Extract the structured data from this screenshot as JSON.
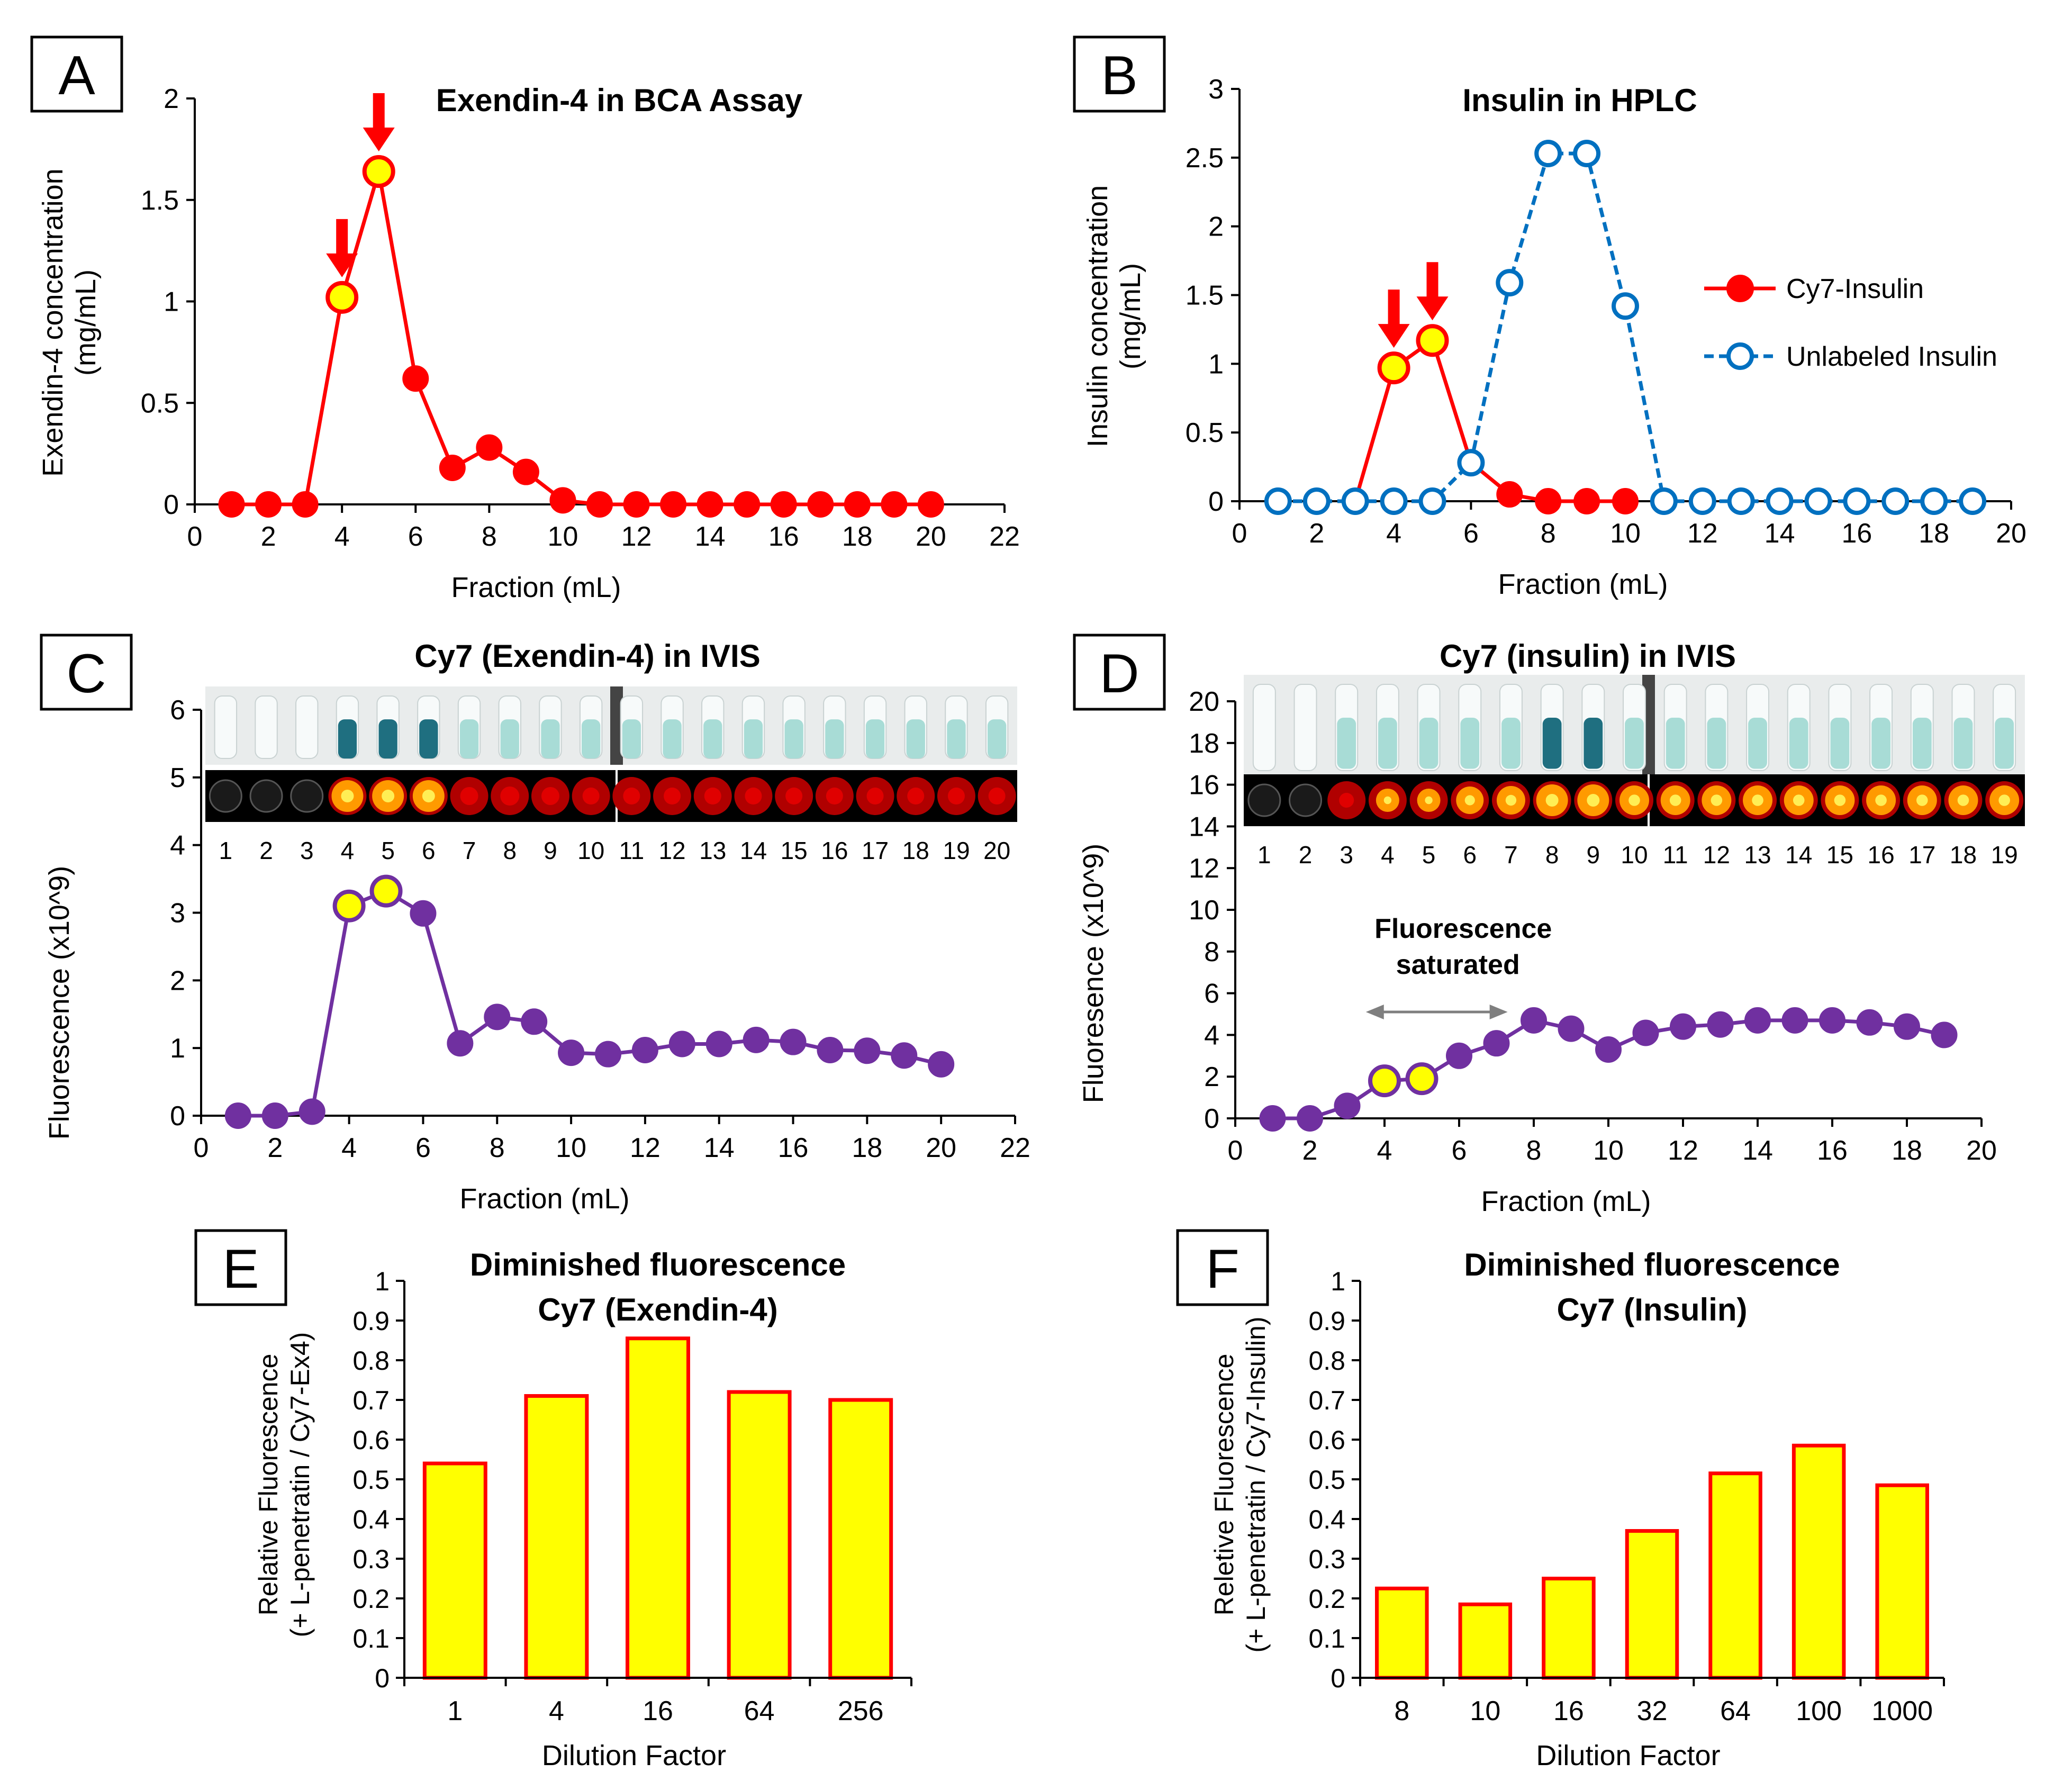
{
  "colors": {
    "red": "#ff0000",
    "blue": "#0070c0",
    "purple": "#7030a0",
    "yellow": "#ffff00",
    "arrow": "#ff0000",
    "grey": "#7f7f7f",
    "tube_dark": "#1f6f80",
    "tube_light": "#a8dcd6"
  },
  "chart_data": [
    {
      "id": "A",
      "panel_label": "A",
      "type": "line",
      "title": "Exendin-4 in BCA Assay",
      "xlabel": "Fraction (mL)",
      "ylabel": [
        "Exendin-4 concentration",
        "(mg/mL)"
      ],
      "xlim": [
        0,
        22
      ],
      "ylim": [
        0,
        2
      ],
      "xticks": [
        "0",
        "2",
        "4",
        "6",
        "8",
        "10",
        "12",
        "14",
        "16",
        "18",
        "20",
        "22"
      ],
      "yticks": [
        "0",
        "0.5",
        "1",
        "1.5",
        "2"
      ],
      "series": [
        {
          "name": "Exendin-4",
          "style": "solid-filled",
          "x": [
            1,
            2,
            3,
            4,
            5,
            6,
            7,
            8,
            9,
            10,
            11,
            12,
            13,
            14,
            15,
            16,
            17,
            18,
            19,
            20
          ],
          "y": [
            0,
            0,
            0,
            1.02,
            1.64,
            0.62,
            0.18,
            0.28,
            0.16,
            0.02,
            0,
            0,
            0,
            0,
            0,
            0,
            0,
            0,
            0,
            0
          ],
          "highlight": [
            4,
            5
          ]
        }
      ],
      "arrows": [
        4,
        5
      ]
    },
    {
      "id": "B",
      "panel_label": "B",
      "type": "line",
      "title": "Insulin in HPLC",
      "xlabel": "Fraction (mL)",
      "ylabel": [
        "Insulin concentration",
        "(mg/mL)"
      ],
      "xlim": [
        0,
        20
      ],
      "ylim": [
        0,
        3
      ],
      "xticks": [
        "0",
        "2",
        "4",
        "6",
        "8",
        "10",
        "12",
        "14",
        "16",
        "18",
        "20"
      ],
      "yticks": [
        "0",
        "0.5",
        "1",
        "1.5",
        "2",
        "2.5",
        "3"
      ],
      "series": [
        {
          "name": "Cy7-Insulin",
          "style": "solid-filled",
          "x": [
            3,
            4,
            5,
            6,
            7,
            8,
            9,
            10
          ],
          "y": [
            0,
            0.97,
            1.17,
            0.28,
            0.05,
            0,
            0,
            0
          ],
          "marker_from": 4,
          "highlight": [
            4,
            5
          ]
        },
        {
          "name": "Unlabeled Insulin",
          "style": "dashed-open",
          "x": [
            1,
            2,
            3,
            4,
            5,
            6,
            7,
            8,
            9,
            10,
            11,
            12,
            13,
            14,
            15,
            16,
            17,
            18,
            19
          ],
          "y": [
            0,
            0,
            0,
            0,
            0,
            0.28,
            1.59,
            2.53,
            2.53,
            1.42,
            0,
            0,
            0,
            0,
            0,
            0,
            0,
            0,
            0
          ]
        }
      ],
      "legend": [
        "Cy7-Insulin",
        "Unlabeled Insulin"
      ],
      "arrows": [
        4,
        5
      ]
    },
    {
      "id": "C",
      "panel_label": "C",
      "type": "line",
      "title": "Cy7 (Exendin-4) in IVIS",
      "xlabel": "Fraction (mL)",
      "ylabel": [
        "Fluorescence (x10^9)"
      ],
      "xlim": [
        0,
        22
      ],
      "ylim": [
        0,
        6
      ],
      "xticks": [
        "0",
        "2",
        "4",
        "6",
        "8",
        "10",
        "12",
        "14",
        "16",
        "18",
        "20",
        "22"
      ],
      "yticks": [
        "0",
        "1",
        "2",
        "3",
        "4",
        "5",
        "6"
      ],
      "series": [
        {
          "name": "Cy7 (Exendin-4)",
          "style": "solid-filled",
          "x": [
            1,
            2,
            3,
            4,
            5,
            6,
            7,
            8,
            9,
            10,
            11,
            12,
            13,
            14,
            15,
            16,
            17,
            18,
            19,
            20
          ],
          "y": [
            0,
            0,
            0.06,
            3.1,
            3.32,
            2.99,
            1.07,
            1.46,
            1.39,
            0.93,
            0.91,
            0.97,
            1.06,
            1.06,
            1.12,
            1.09,
            0.97,
            0.96,
            0.89,
            0.76
          ],
          "highlight": [
            4,
            5
          ]
        }
      ],
      "wells": [
        "1",
        "2",
        "3",
        "4",
        "5",
        "6",
        "7",
        "8",
        "9",
        "10",
        "11",
        "12",
        "13",
        "14",
        "15",
        "16",
        "17",
        "18",
        "19",
        "20"
      ],
      "well_intensity": [
        0,
        0,
        0,
        1,
        1,
        1,
        0.35,
        0.4,
        0.35,
        0.3,
        0.3,
        0.3,
        0.3,
        0.3,
        0.3,
        0.3,
        0.3,
        0.3,
        0.3,
        0.3
      ]
    },
    {
      "id": "D",
      "panel_label": "D",
      "type": "line",
      "title": "Cy7 (insulin) in IVIS",
      "xlabel": "Fraction (mL)",
      "ylabel": [
        "Fluoresence (x10^9)"
      ],
      "xlim": [
        0,
        20
      ],
      "ylim": [
        0,
        20
      ],
      "xticks": [
        "0",
        "2",
        "4",
        "6",
        "8",
        "10",
        "12",
        "14",
        "16",
        "18",
        "20"
      ],
      "yticks": [
        "0",
        "2",
        "4",
        "6",
        "8",
        "10",
        "12",
        "14",
        "16",
        "18",
        "20"
      ],
      "series": [
        {
          "name": "Cy7 (insulin)",
          "style": "solid-filled",
          "x": [
            1,
            2,
            3,
            4,
            5,
            6,
            7,
            8,
            9,
            10,
            11,
            12,
            13,
            14,
            15,
            16,
            17,
            18,
            19
          ],
          "y": [
            0,
            0,
            0.6,
            1.8,
            1.9,
            3.0,
            3.6,
            4.7,
            4.3,
            3.3,
            4.1,
            4.4,
            4.5,
            4.7,
            4.7,
            4.7,
            4.6,
            4.4,
            4.0
          ],
          "highlight": [
            4,
            5
          ]
        }
      ],
      "annotation": {
        "lines": [
          "Fluorescence",
          "saturated"
        ],
        "x_from": 3.5,
        "x_to": 7.3,
        "y": 5.1
      },
      "wells": [
        "1",
        "2",
        "3",
        "4",
        "5",
        "6",
        "7",
        "8",
        "9",
        "10",
        "11",
        "12",
        "13",
        "14",
        "15",
        "16",
        "17",
        "18",
        "19"
      ],
      "well_intensity": [
        0,
        0,
        0.2,
        0.6,
        0.6,
        0.8,
        0.85,
        1,
        1,
        0.9,
        0.9,
        0.9,
        0.9,
        0.9,
        0.9,
        0.9,
        0.9,
        0.9,
        0.9
      ]
    },
    {
      "id": "E",
      "panel_label": "E",
      "type": "bar",
      "title": [
        "Diminished fluorescence",
        "Cy7 (Exendin-4)"
      ],
      "xlabel": "Dilution Factor",
      "ylabel": [
        "Relative Fluorescence",
        "(+ L-penetratin / Cy7-Ex4)"
      ],
      "ylim": [
        0,
        1
      ],
      "yticks": [
        "0",
        "0.1",
        "0.2",
        "0.3",
        "0.4",
        "0.5",
        "0.6",
        "0.7",
        "0.8",
        "0.9",
        "1"
      ],
      "categories": [
        "1",
        "4",
        "16",
        "64",
        "256"
      ],
      "values": [
        0.54,
        0.71,
        0.855,
        0.72,
        0.7
      ]
    },
    {
      "id": "F",
      "panel_label": "F",
      "type": "bar",
      "title": [
        "Diminished fluorescence",
        "Cy7 (Insulin)"
      ],
      "xlabel": "Dilution Factor",
      "ylabel": [
        "Reletive Fluorescence",
        "(+ L-penetratin / Cy7-Insulin)"
      ],
      "ylim": [
        0,
        1
      ],
      "yticks": [
        "0",
        "0.1",
        "0.2",
        "0.3",
        "0.4",
        "0.5",
        "0.6",
        "0.7",
        "0.8",
        "0.9",
        "1"
      ],
      "categories": [
        "8",
        "10",
        "16",
        "32",
        "64",
        "100",
        "1000"
      ],
      "values": [
        0.225,
        0.185,
        0.25,
        0.37,
        0.515,
        0.585,
        0.485
      ]
    }
  ]
}
